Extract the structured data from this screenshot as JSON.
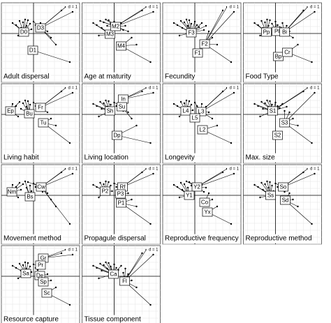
{
  "chart_data": [
    {
      "type": "class",
      "title": "Adult dispersal",
      "scale_label": "d = 1",
      "grid": true,
      "xlim": [
        -4.6,
        6.6
      ],
      "ylim": [
        -7,
        4.4
      ],
      "x": [
        -3,
        -2.5,
        -2.2,
        -2,
        -1.8,
        -1.5,
        -1.2,
        -1,
        -0.8,
        -0.5,
        -0.3,
        0,
        0.3,
        0.6,
        1,
        1.3,
        1.6,
        2,
        2.5,
        3.2,
        4,
        4.6,
        5.2,
        5.6
      ],
      "y": [
        1.5,
        1.2,
        -0.3,
        1.8,
        0.8,
        1.6,
        2,
        1.1,
        1.9,
        1.4,
        0.6,
        1.7,
        1.2,
        0.9,
        1.5,
        0.5,
        1.1,
        0.3,
        -0.6,
        -1.6,
        3.3,
        3.8,
        -4.1,
        3.1
      ],
      "categories": [
        "D0",
        "D3",
        "D1"
      ],
      "class_x": [
        -1.4,
        1,
        -0.1
      ],
      "class_y": [
        0.2,
        0.8,
        -2.4
      ]
    },
    {
      "type": "class",
      "title": "Age at maturity",
      "scale_label": "d = 1",
      "grid": true,
      "xlim": [
        -4.6,
        6.6
      ],
      "ylim": [
        -7,
        4.4
      ],
      "x": [
        -3,
        -2.5,
        -2.2,
        -2,
        -1.8,
        -1.5,
        -1.2,
        -1,
        -0.8,
        -0.5,
        -0.3,
        0,
        0.3,
        0.6,
        1,
        1.3,
        1.6,
        2,
        2.5,
        3.2,
        4,
        4.6,
        5.2,
        5.6
      ],
      "y": [
        1.5,
        1.2,
        -0.3,
        1.8,
        0.8,
        1.6,
        2,
        1.1,
        1.9,
        1.4,
        0.6,
        1.7,
        1.2,
        0.9,
        1.5,
        0.5,
        1.1,
        0.3,
        -0.6,
        -1.6,
        3.3,
        3.8,
        -4.1,
        3.1
      ],
      "categories": [
        "M3",
        "M2",
        "M4"
      ],
      "class_x": [
        -0.6,
        0.2,
        1
      ],
      "class_y": [
        -0.1,
        1,
        -1.8
      ]
    },
    {
      "type": "class",
      "title": "Fecundity",
      "scale_label": "d = 1",
      "grid": true,
      "xlim": [
        -4.6,
        6.6
      ],
      "ylim": [
        -7,
        4.4
      ],
      "x": [
        -3,
        -2.5,
        -2.2,
        -2,
        -1.8,
        -1.5,
        -1.2,
        -1,
        -0.8,
        -0.5,
        -0.3,
        0,
        0.3,
        0.6,
        1,
        1.3,
        1.6,
        2,
        2.5,
        3.2,
        4,
        4.6,
        5.2,
        5.6
      ],
      "y": [
        1.5,
        1.2,
        -0.3,
        1.8,
        0.8,
        1.6,
        2,
        1.1,
        1.9,
        1.4,
        0.6,
        1.7,
        1.2,
        0.9,
        1.5,
        0.5,
        1.1,
        0.3,
        -0.6,
        -1.6,
        3.3,
        3.8,
        -4.1,
        3.1
      ],
      "categories": [
        "F3",
        "F2",
        "F1"
      ],
      "class_x": [
        -0.5,
        1.4,
        0.4
      ],
      "class_y": [
        0.1,
        -1.5,
        -2.8
      ]
    },
    {
      "type": "class",
      "title": "Food Type",
      "scale_label": "d = 1",
      "grid": true,
      "xlim": [
        -4.6,
        6.6
      ],
      "ylim": [
        -7,
        4.4
      ],
      "x": [
        -3,
        -2.5,
        -2.2,
        -2,
        -1.8,
        -1.5,
        -1.2,
        -1,
        -0.8,
        -0.5,
        -0.3,
        0,
        0.3,
        0.6,
        1,
        1.3,
        1.6,
        2,
        2.5,
        3.2,
        4,
        4.6,
        5.2,
        5.6
      ],
      "y": [
        1.5,
        1.2,
        -0.3,
        1.8,
        0.8,
        1.6,
        2,
        1.1,
        1.9,
        1.4,
        0.6,
        1.7,
        1.2,
        0.9,
        1.5,
        0.5,
        1.1,
        0.3,
        -0.6,
        -1.6,
        3.3,
        3.8,
        -4.1,
        3.1
      ],
      "categories": [
        "Pp",
        "Pl",
        "Bi",
        "Bp",
        "Cr"
      ],
      "class_x": [
        -1.3,
        0.2,
        1.3,
        0.4,
        1.7
      ],
      "class_y": [
        0.2,
        0.3,
        0.2,
        -3.3,
        -2.7
      ]
    },
    {
      "type": "class",
      "title": "Living habit",
      "scale_label": "d = 1",
      "grid": true,
      "xlim": [
        -4.6,
        6.6
      ],
      "ylim": [
        -7,
        4.4
      ],
      "x": [
        -3,
        -2.5,
        -2.2,
        -2,
        -1.8,
        -1.5,
        -1.2,
        -1,
        -0.8,
        -0.5,
        -0.3,
        0,
        0.3,
        0.6,
        1,
        1.3,
        1.6,
        2,
        2.5,
        3.2,
        4,
        4.6,
        5.2,
        5.6
      ],
      "y": [
        1.5,
        1.2,
        -0.3,
        1.8,
        0.8,
        1.6,
        2,
        1.1,
        1.9,
        1.4,
        0.6,
        1.7,
        1.2,
        0.9,
        1.5,
        0.5,
        1.1,
        0.3,
        -0.6,
        -1.6,
        3.3,
        3.8,
        -4.1,
        3.1
      ],
      "categories": [
        "Ep",
        "Fr",
        "Bu",
        "Tu"
      ],
      "class_x": [
        -3.3,
        1,
        -0.6,
        1.4
      ],
      "class_y": [
        0.5,
        1,
        0.1,
        -1.2
      ]
    },
    {
      "type": "class",
      "title": "Living location",
      "scale_label": "d = 1",
      "grid": true,
      "xlim": [
        -4.6,
        6.6
      ],
      "ylim": [
        -7,
        4.4
      ],
      "x": [
        -3,
        -2.5,
        -2.2,
        -2,
        -1.8,
        -1.5,
        -1.2,
        -1,
        -0.8,
        -0.5,
        -0.3,
        0,
        0.3,
        0.6,
        1,
        1.3,
        1.6,
        2,
        2.5,
        3.2,
        4,
        4.6,
        5.2,
        5.6
      ],
      "y": [
        1.5,
        1.2,
        -0.3,
        1.8,
        0.8,
        1.6,
        2,
        1.1,
        1.9,
        1.4,
        0.6,
        1.7,
        1.2,
        0.9,
        1.5,
        0.5,
        1.1,
        0.3,
        -0.6,
        -1.6,
        3.3,
        3.8,
        -4.1,
        3.1
      ],
      "categories": [
        "In",
        "Su",
        "Sh",
        "Dp"
      ],
      "class_x": [
        1.3,
        1.1,
        -0.6,
        0.4
      ],
      "class_y": [
        2.2,
        1.1,
        0.5,
        -3
      ]
    },
    {
      "type": "class",
      "title": "Longevity",
      "scale_label": "d = 1",
      "grid": true,
      "xlim": [
        -4.6,
        6.6
      ],
      "ylim": [
        -7,
        4.4
      ],
      "x": [
        -3,
        -2.5,
        -2.2,
        -2,
        -1.8,
        -1.5,
        -1.2,
        -1,
        -0.8,
        -0.5,
        -0.3,
        0,
        0.3,
        0.6,
        1,
        1.3,
        1.6,
        2,
        2.5,
        3.2,
        4,
        4.6,
        5.2,
        5.6
      ],
      "y": [
        1.5,
        1.2,
        -0.3,
        1.8,
        0.8,
        1.6,
        2,
        1.1,
        1.9,
        1.4,
        0.6,
        1.7,
        1.2,
        0.9,
        1.5,
        0.5,
        1.1,
        0.3,
        -0.6,
        -1.6,
        3.3,
        3.8,
        -4.1,
        3.1
      ],
      "categories": [
        "L4",
        "L3",
        "L5",
        "L2"
      ],
      "class_x": [
        -1.3,
        0.9,
        0,
        1.1
      ],
      "class_y": [
        0.5,
        0.4,
        -0.5,
        -2.2
      ]
    },
    {
      "type": "class",
      "title": "Max. size",
      "scale_label": "d = 1",
      "grid": true,
      "xlim": [
        -4.6,
        6.6
      ],
      "ylim": [
        -7,
        4.4
      ],
      "x": [
        -3,
        -2.5,
        -2.2,
        -2,
        -1.8,
        -1.5,
        -1.2,
        -1,
        -0.8,
        -0.5,
        -0.3,
        0,
        0.3,
        0.6,
        1,
        1.3,
        1.6,
        2,
        2.5,
        3.2,
        4,
        4.6,
        5.2,
        5.6
      ],
      "y": [
        1.5,
        1.2,
        -0.3,
        1.8,
        0.8,
        1.6,
        2,
        1.1,
        1.9,
        1.4,
        0.6,
        1.7,
        1.2,
        0.9,
        1.5,
        0.5,
        1.1,
        0.3,
        -0.6,
        -1.6,
        3.3,
        3.8,
        -4.1,
        3.1
      ],
      "categories": [
        "S1",
        "S3",
        "S2"
      ],
      "class_x": [
        -0.4,
        1.3,
        0.3
      ],
      "class_y": [
        0.5,
        -1.2,
        -3
      ]
    },
    {
      "type": "class",
      "title": "Movement method",
      "scale_label": "d = 1",
      "grid": true,
      "xlim": [
        -4.6,
        6.6
      ],
      "ylim": [
        -7,
        4.4
      ],
      "x": [
        -3,
        -2.5,
        -2.2,
        -2,
        -1.8,
        -1.5,
        -1.2,
        -1,
        -0.8,
        -0.5,
        -0.3,
        0,
        0.3,
        0.6,
        1,
        1.3,
        1.6,
        2,
        2.5,
        3.2,
        4,
        4.6,
        5.2,
        5.6
      ],
      "y": [
        1.5,
        1.2,
        -0.3,
        1.8,
        0.8,
        1.6,
        2,
        1.1,
        1.9,
        1.4,
        0.6,
        1.7,
        1.2,
        0.9,
        1.5,
        0.5,
        1.1,
        0.3,
        -0.6,
        -1.6,
        3.3,
        3.8,
        -4.1,
        3.1
      ],
      "categories": [
        "Nm",
        "Cw",
        "Bs"
      ],
      "class_x": [
        -3.1,
        1.1,
        -0.5
      ],
      "class_y": [
        0.5,
        1.2,
        -0.2
      ]
    },
    {
      "type": "class",
      "title": "Propagule dispersal",
      "scale_label": "d = 1",
      "grid": true,
      "xlim": [
        -4.6,
        6.6
      ],
      "ylim": [
        -7,
        4.4
      ],
      "x": [
        -3,
        -2.5,
        -2.2,
        -2,
        -1.8,
        -1.5,
        -1.2,
        -1,
        -0.8,
        -0.5,
        -0.3,
        0,
        0.3,
        0.6,
        1,
        1.3,
        1.6,
        2,
        2.5,
        3.2,
        4,
        4.6,
        5.2,
        5.6
      ],
      "y": [
        1.5,
        1.2,
        -0.3,
        1.8,
        0.8,
        1.6,
        2,
        1.1,
        1.9,
        1.4,
        0.6,
        1.7,
        1.2,
        0.9,
        1.5,
        0.5,
        1.1,
        0.3,
        -0.6,
        -1.6,
        3.3,
        3.8,
        -4.1,
        3.1
      ],
      "categories": [
        "P2",
        "Rf",
        "P3",
        "P1"
      ],
      "class_x": [
        -1.3,
        1.2,
        0.9,
        1
      ],
      "class_y": [
        0.6,
        1.2,
        0.2,
        -1.1
      ]
    },
    {
      "type": "class",
      "title": "Reproductive frequency",
      "scale_label": "d = 1",
      "grid": true,
      "xlim": [
        -4.6,
        6.6
      ],
      "ylim": [
        -7,
        4.4
      ],
      "x": [
        -3,
        -2.5,
        -2.2,
        -2,
        -1.8,
        -1.5,
        -1.2,
        -1,
        -0.8,
        -0.5,
        -0.3,
        0,
        0.3,
        0.6,
        1,
        1.3,
        1.6,
        2,
        2.5,
        3.2,
        4,
        4.6,
        5.2,
        5.6
      ],
      "y": [
        1.5,
        1.2,
        -0.3,
        1.8,
        0.8,
        1.6,
        2,
        1.1,
        1.9,
        1.4,
        0.6,
        1.7,
        1.2,
        0.9,
        1.5,
        0.5,
        1.1,
        0.3,
        -0.6,
        -1.6,
        3.3,
        3.8,
        -4.1,
        3.1
      ],
      "categories": [
        "Y2",
        "Y1",
        "Co",
        "Yx"
      ],
      "class_x": [
        0.3,
        -0.8,
        1.4,
        1.8
      ],
      "class_y": [
        1.2,
        0,
        -1,
        -2.4
      ]
    },
    {
      "type": "class",
      "title": "Reproductive method",
      "scale_label": "d = 1",
      "grid": true,
      "xlim": [
        -4.6,
        6.6
      ],
      "ylim": [
        -7,
        4.4
      ],
      "x": [
        -3,
        -2.5,
        -2.2,
        -2,
        -1.8,
        -1.5,
        -1.2,
        -1,
        -0.8,
        -0.5,
        -0.3,
        0,
        0.3,
        0.6,
        1,
        1.3,
        1.6,
        2,
        2.5,
        3.2,
        4,
        4.6,
        5.2,
        5.6
      ],
      "y": [
        1.5,
        1.2,
        -0.3,
        1.8,
        0.8,
        1.6,
        2,
        1.1,
        1.9,
        1.4,
        0.6,
        1.7,
        1.2,
        0.9,
        1.5,
        0.5,
        1.1,
        0.3,
        -0.6,
        -1.6,
        3.3,
        3.8,
        -4.1,
        3.1
      ],
      "categories": [
        "So",
        "Ss",
        "Sd"
      ],
      "class_x": [
        1.1,
        -0.7,
        1.4
      ],
      "class_y": [
        1.2,
        0,
        -0.7
      ]
    },
    {
      "type": "class",
      "title": "Resource capture",
      "scale_label": "d = 1",
      "grid": true,
      "xlim": [
        -4.6,
        6.6
      ],
      "ylim": [
        -7,
        4.4
      ],
      "x": [
        -3,
        -2.5,
        -2.2,
        -2,
        -1.8,
        -1.5,
        -1.2,
        -1,
        -0.8,
        -0.5,
        -0.3,
        0,
        0.3,
        0.6,
        1,
        1.3,
        1.6,
        2,
        2.5,
        3.2,
        4,
        4.6,
        5.2,
        5.6
      ],
      "y": [
        1.5,
        1.2,
        -0.3,
        1.8,
        0.8,
        1.6,
        2,
        1.1,
        1.9,
        1.4,
        0.6,
        1.7,
        1.2,
        0.9,
        1.5,
        0.5,
        1.1,
        0.3,
        -0.6,
        -1.6,
        3.3,
        3.8,
        -4.1,
        3.1
      ],
      "categories": [
        "Gr",
        "Pr",
        "Sa",
        "De",
        "Sp",
        "Sc"
      ],
      "class_x": [
        1.4,
        1,
        -1.1,
        0.9,
        1.4,
        1.9
      ],
      "class_y": [
        2.6,
        1.6,
        0.4,
        0.1,
        -0.8,
        -2.4
      ]
    },
    {
      "type": "class",
      "title": "Tissue component",
      "scale_label": "d = 1",
      "grid": true,
      "xlim": [
        -4.6,
        6.6
      ],
      "ylim": [
        -7,
        4.4
      ],
      "x": [
        -3,
        -2.5,
        -2.2,
        -2,
        -1.8,
        -1.5,
        -1.2,
        -1,
        -0.8,
        -0.5,
        -0.3,
        0,
        0.3,
        0.6,
        1,
        1.3,
        1.6,
        2,
        2.5,
        3.2,
        4,
        4.6,
        5.2,
        5.6
      ],
      "y": [
        1.5,
        1.2,
        -0.3,
        1.8,
        0.8,
        1.6,
        2,
        1.1,
        1.9,
        1.4,
        0.6,
        1.7,
        1.2,
        0.9,
        1.5,
        0.5,
        1.1,
        0.3,
        -0.6,
        -1.6,
        3.3,
        3.8,
        -4.1,
        3.1
      ],
      "categories": [
        "Ca",
        "Fl"
      ],
      "class_x": [
        -0.1,
        1.5
      ],
      "class_y": [
        0.3,
        -0.7
      ]
    }
  ]
}
